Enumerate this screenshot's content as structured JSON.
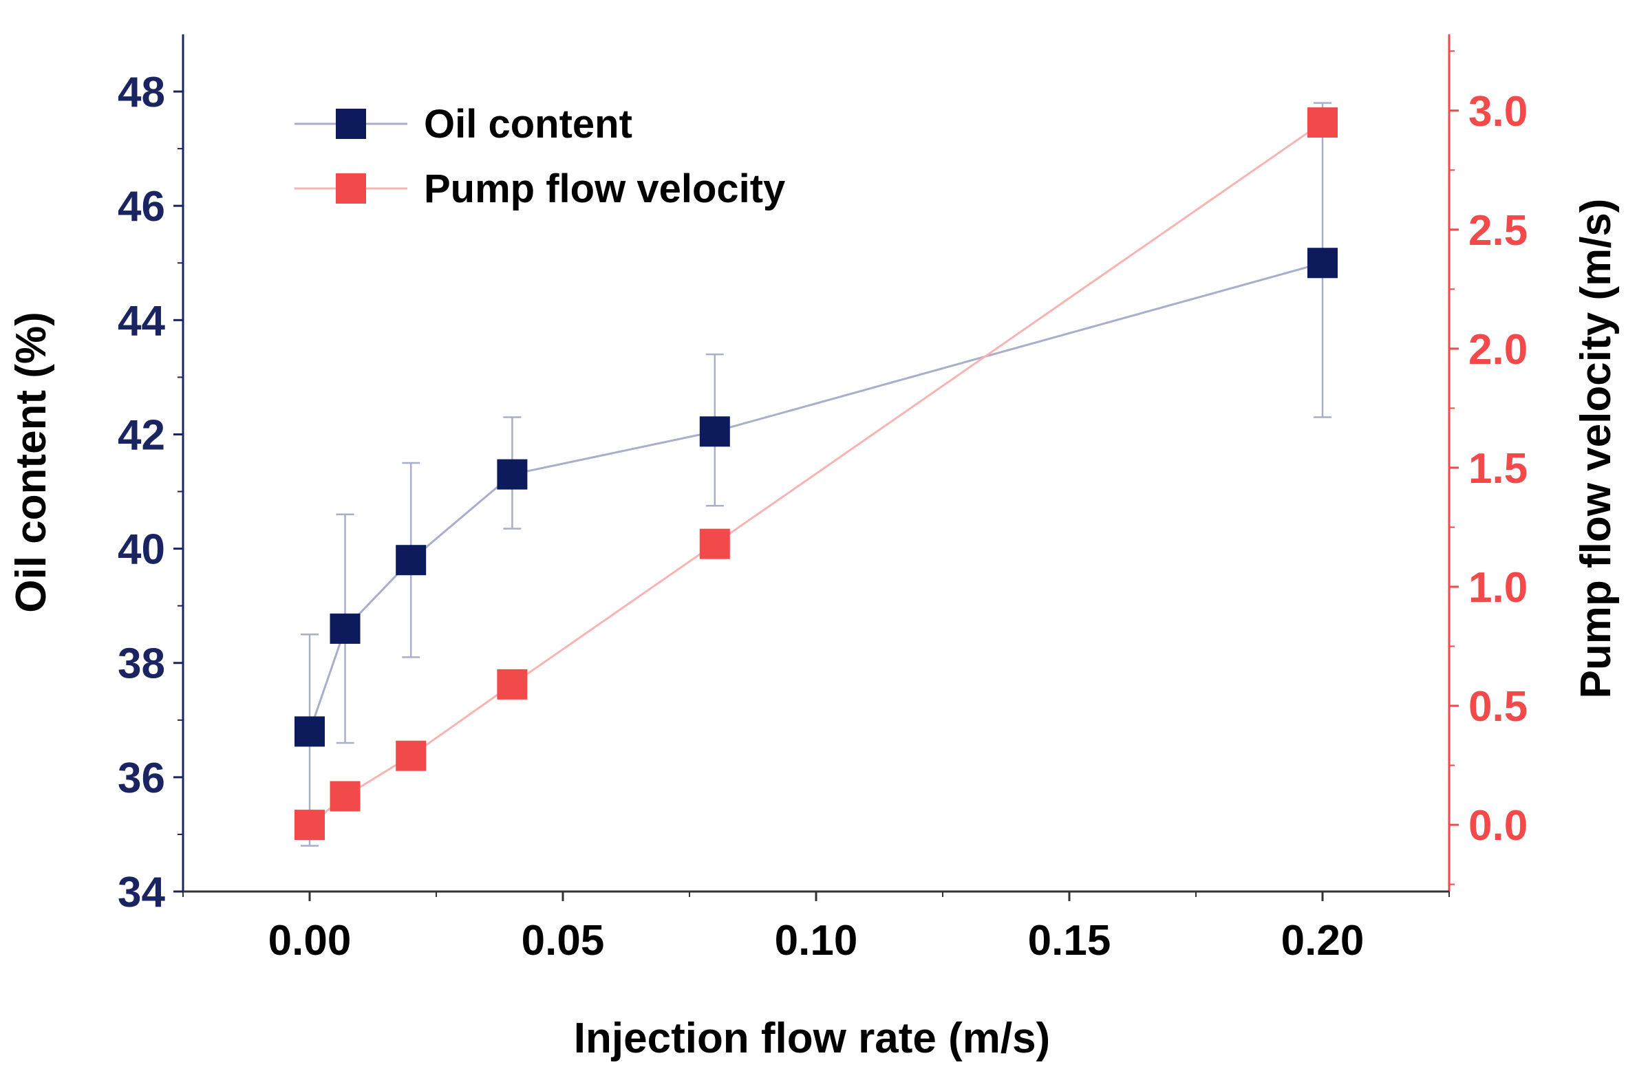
{
  "chart_data": {
    "type": "line",
    "title": "",
    "xlabel": "Injection flow rate (m/s)",
    "ylabel_left": "Oil content (%)",
    "ylabel_right": "Pump flow velocity (m/s)",
    "xlim": [
      -0.025,
      0.225
    ],
    "ylim_left": [
      34,
      49
    ],
    "ylim_right": [
      -0.28,
      3.32
    ],
    "x_ticks": [
      0.0,
      0.05,
      0.1,
      0.15,
      0.2
    ],
    "x_tick_labels": [
      "0.00",
      "0.05",
      "0.10",
      "0.15",
      "0.20"
    ],
    "y_left_ticks": [
      34,
      36,
      38,
      40,
      42,
      44,
      46,
      48
    ],
    "y_left_tick_labels": [
      "34",
      "36",
      "38",
      "40",
      "42",
      "44",
      "46",
      "48"
    ],
    "y_right_ticks": [
      0.0,
      0.5,
      1.0,
      1.5,
      2.0,
      2.5,
      3.0
    ],
    "y_right_tick_labels": [
      "0.0",
      "0.5",
      "1.0",
      "1.5",
      "2.0",
      "2.5",
      "3.0"
    ],
    "grid": false,
    "legend_position": "top-left",
    "series": [
      {
        "name": "Oil content",
        "axis": "left",
        "color": "#0d1a5c",
        "line_color": "#a9aecb",
        "x": [
          0.0,
          0.007,
          0.02,
          0.04,
          0.08,
          0.2
        ],
        "y": [
          36.8,
          38.6,
          39.8,
          41.3,
          42.05,
          45.0
        ],
        "err_low": [
          34.8,
          36.6,
          38.1,
          40.35,
          40.75,
          42.3
        ],
        "err_high": [
          38.5,
          40.6,
          41.5,
          42.3,
          43.4,
          47.8
        ]
      },
      {
        "name": "Pump flow velocity",
        "axis": "right",
        "color": "#f24a4a",
        "line_color": "#f7b4b4",
        "x": [
          0.0,
          0.007,
          0.02,
          0.04,
          0.08,
          0.2
        ],
        "y": [
          0.0,
          0.12,
          0.29,
          0.59,
          1.18,
          2.95
        ]
      }
    ]
  },
  "colors": {
    "left_axis": "#1a2460",
    "right_axis": "#f24a4a",
    "text": "#000000"
  }
}
